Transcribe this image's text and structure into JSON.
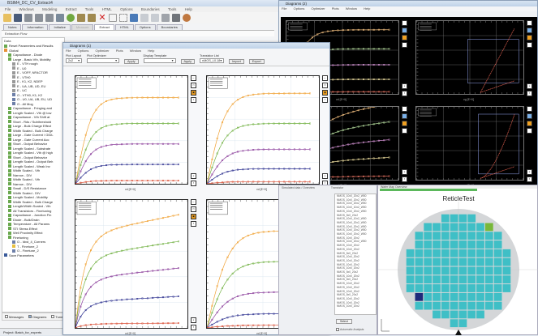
{
  "main": {
    "title": "BSIM4_DC_CV_Extract4",
    "menu": [
      "File",
      "Windows",
      "Modeling",
      "Extract",
      "Tools",
      "HTML",
      "Options",
      "Boundaries",
      "Tools",
      "Help"
    ],
    "tabs": [
      {
        "label": "Notes",
        "state": "normal"
      },
      {
        "label": "Information",
        "state": "normal"
      },
      {
        "label": "Initialize",
        "state": "normal"
      },
      {
        "label": "Measure",
        "state": "disabled"
      },
      {
        "label": "Extract",
        "state": "active"
      },
      {
        "label": "HTML",
        "state": "normal"
      },
      {
        "label": "Options",
        "state": "normal"
      },
      {
        "label": "Boundaries",
        "state": "normal"
      }
    ],
    "extraction_flow_label": "Extraction Flow",
    "tree_header": "Data",
    "tree": [
      {
        "label": "Reset Parameters and Results",
        "level": 1,
        "icon": "green"
      },
      {
        "label": "Global",
        "level": 1,
        "icon": "orange"
      },
      {
        "label": "Capacitance - Diode",
        "level": 2,
        "icon": "green"
      },
      {
        "label": "Large - Basic Vth, Mobility",
        "level": 2,
        "icon": "green"
      },
      {
        "label": "E - VTH rough",
        "level": 3,
        "icon": "gray"
      },
      {
        "label": "E - U0",
        "level": 3,
        "icon": "gray"
      },
      {
        "label": "E - VOFF, NFACTOR",
        "level": 3,
        "icon": "gray"
      },
      {
        "label": "E - VTH0",
        "level": 3,
        "icon": "gray"
      },
      {
        "label": "E - K1, K2, NDEP",
        "level": 3,
        "icon": "gray"
      },
      {
        "label": "E - UA, UB, UD, EU",
        "level": 3,
        "icon": "gray"
      },
      {
        "label": "E - UC",
        "level": 3,
        "icon": "gray"
      },
      {
        "label": "O - VTH0, K1, K2",
        "level": 3,
        "icon": "blue"
      },
      {
        "label": "O - U0, UA, UB, EU, UD",
        "level": 3,
        "icon": "blue"
      },
      {
        "label": "O - All Mog",
        "level": 3,
        "icon": "blue"
      },
      {
        "label": "Capacitance - Fringing and",
        "level": 2,
        "icon": "green"
      },
      {
        "label": "Length Scaled - Vth @ low",
        "level": 2,
        "icon": "green"
      },
      {
        "label": "Capacitance - Vth Shift at",
        "level": 2,
        "icon": "green"
      },
      {
        "label": "Short - Rds / Subthreshold",
        "level": 2,
        "icon": "green"
      },
      {
        "label": "Large - Bulk Charge Effect",
        "level": 2,
        "icon": "green"
      },
      {
        "label": "Width Scaled - Bulk Charge",
        "level": 2,
        "icon": "green"
      },
      {
        "label": "Large - Gate Current / GIDL",
        "level": 2,
        "icon": "green"
      },
      {
        "label": "Large - Gate Current Acc",
        "level": 2,
        "icon": "green"
      },
      {
        "label": "Short - Output Behavior",
        "level": 2,
        "icon": "green"
      },
      {
        "label": "Length Scaled - Substrate",
        "level": 2,
        "icon": "green"
      },
      {
        "label": "Length Scaled - Vth @ high",
        "level": 2,
        "icon": "green"
      },
      {
        "label": "Short - Output Behavior",
        "level": 2,
        "icon": "green"
      },
      {
        "label": "Length Scaled - Output Beh",
        "level": 2,
        "icon": "green"
      },
      {
        "label": "Length Scaled - Weak Inv",
        "level": 2,
        "icon": "green"
      },
      {
        "label": "Width Scaled - Vth",
        "level": 2,
        "icon": "green"
      },
      {
        "label": "Narrow - DIV",
        "level": 2,
        "icon": "green"
      },
      {
        "label": "Width Scaled - Vth",
        "level": 2,
        "icon": "green"
      },
      {
        "label": "Narrow - DIV",
        "level": 2,
        "icon": "green"
      },
      {
        "label": "Small - D/S Resistance",
        "level": 2,
        "icon": "green"
      },
      {
        "label": "Width Scaled - DIV",
        "level": 2,
        "icon": "green"
      },
      {
        "label": "Length Scaled - Mobility",
        "level": 2,
        "icon": "green"
      },
      {
        "label": "Width Scaled - Bulk Charge",
        "level": 2,
        "icon": "green"
      },
      {
        "label": "Length/Width Scaled - Vth",
        "level": 2,
        "icon": "green"
      },
      {
        "label": "All Transistors - Finetuning",
        "level": 2,
        "icon": "green"
      },
      {
        "label": "Capacitance - Junction Fin",
        "level": 2,
        "icon": "green"
      },
      {
        "label": "Diode - Bulk/Drain",
        "level": 2,
        "icon": "green"
      },
      {
        "label": "Temperature - All Params",
        "level": 2,
        "icon": "green"
      },
      {
        "label": "STI Stress Effect",
        "level": 2,
        "icon": "green"
      },
      {
        "label": "Well Proximity Effect",
        "level": 2,
        "icon": "green"
      },
      {
        "label": "Finetuning",
        "level": 2,
        "icon": "green"
      },
      {
        "label": "O - Idvd_4_Corners",
        "level": 3,
        "icon": "blue"
      },
      {
        "label": "T - Finetune_2",
        "level": 3,
        "icon": "yellow"
      },
      {
        "label": "O - Finetune_2",
        "level": 3,
        "icon": "blue"
      },
      {
        "label": "Save Parameters",
        "level": 1,
        "icon": "disk"
      }
    ],
    "footer_checks": [
      {
        "label": "Messages",
        "checked": false
      },
      {
        "label": "Diagrams",
        "checked": true
      },
      {
        "label": "Tuner",
        "checked": false
      }
    ],
    "status": "Project: Batch_for_experts"
  },
  "diagrams_light": {
    "title": "Diagrams (1)",
    "menu": [
      "File",
      "Options",
      "Optimizer",
      "Plots",
      "Window",
      "Help"
    ],
    "controls": {
      "plot_layout_label": "Plot Layout",
      "plot_layout_value": "2x2",
      "plot_optimizer_label": "Plot Optimizer",
      "plot_optimizer_value": "",
      "apply1": "Apply",
      "display_template_label": "Display Template",
      "display_template_value": "",
      "apply2": "Apply",
      "transistor_list_label": "Transistor List",
      "transistor_list_value": "nMOS_L0.18",
      "import": "Import",
      "export": "Export"
    },
    "xlabel": "vd [E+0]",
    "ylabel": "id [mA]"
  },
  "diagrams_dark": {
    "title": "Diagrams (2)",
    "menu": [
      "File",
      "Options",
      "Optimizer",
      "Plots",
      "Window",
      "Help"
    ],
    "xlabel_left": "vd [E+0]",
    "xlabel_right": "vg [E+0]"
  },
  "list_panel": {
    "header_left": "Simulated data / Overview",
    "header_right": "Transistor",
    "items": [
      "NMOS_10x0_20x2_W50",
      "NMOS_10x0_20x2_W50",
      "NMOS_10x0_20x2_W50",
      "NMOS_10x0_10x2_W50",
      "NMOS_10x0_20x2_W50",
      "NMOS_5x0_20x2",
      "NMOS_10x0_10x2_W50",
      "NMOS_10x0_20x2_W50",
      "NMOS_10x0_20x2_W50",
      "NMOS_10x0_20x2_W50",
      "NMOS_10x0_20x2_W50",
      "NMOS_10x0_20x2",
      "NMOS_10x0_20x2_W50",
      "NMOS_10x0_20x2",
      "NMOS_10x0_20x2",
      "NMOS_5x0_20x2",
      "NMOS_10x0_20x2",
      "NMOS_10x0_20x2",
      "NMOS_10x0_20x2",
      "NMOS_10x0_20x2",
      "NMOS_5x0_20x2",
      "NMOS_10x0_20x2",
      "NMOS_5x0_20x2",
      "NMOS_10x0_20x2",
      "NMOS_10x0_20x2",
      "NMOS_10x0_20x2",
      "NMOS_5x0_20x2",
      "NMOS_10x0_20x2",
      "NMOS_10x0_20x2",
      "NMOS_10x0_20x2"
    ],
    "button": "Select",
    "check_label": "Automatic Analysis"
  },
  "reticle": {
    "header": "Wafer Map Overview",
    "title": "ReticleTest"
  },
  "colors": {
    "curve_orange": "#f0a030",
    "curve_green": "#70b040",
    "curve_purple": "#8a3d9a",
    "curve_blue": "#2a2e8e",
    "curve_red": "#d84a30",
    "die_cyan": "#3fbfc6",
    "die_green": "#78b83a",
    "die_navy": "#1e2a7a"
  }
}
